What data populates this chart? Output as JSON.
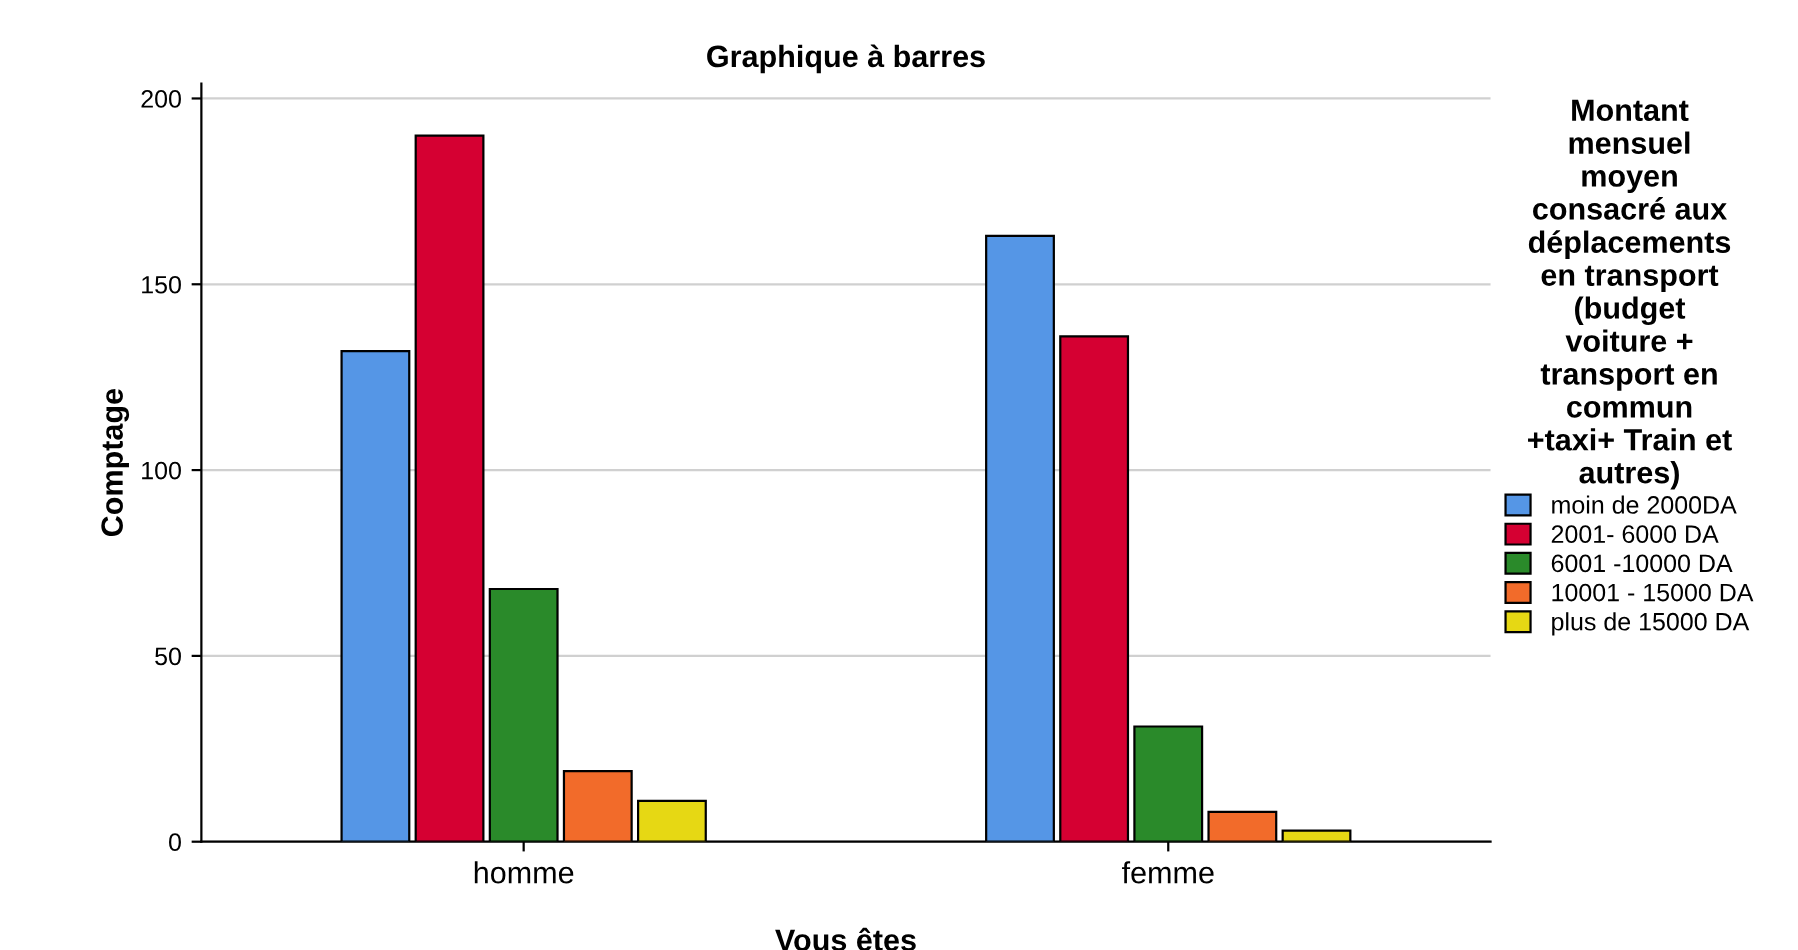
{
  "chart_data": {
    "type": "bar",
    "title": "Graphique à barres",
    "xlabel": "Vous êtes",
    "ylabel": "Comptage",
    "legend_title": "Montant\nmensuel\nmoyen\nconsacré aux\ndéplacements\nen transport\n(budget\nvoiture +\ntransport en\ncommun\n+taxi+ Train et\nautres)",
    "categories": [
      "homme",
      "femme"
    ],
    "series": [
      {
        "name": "moin de 2000DA",
        "color": "#5596e6",
        "values": [
          132,
          163
        ]
      },
      {
        "name": "2001- 6000 DA",
        "color": "#d50032",
        "values": [
          190,
          136
        ]
      },
      {
        "name": "6001 -10000 DA",
        "color": "#2a8a2a",
        "values": [
          68,
          31
        ]
      },
      {
        "name": "10001 - 15000 DA",
        "color": "#f26b2a",
        "values": [
          19,
          8
        ]
      },
      {
        "name": "plus de 15000 DA",
        "color": "#e6d814",
        "values": [
          11,
          3
        ]
      }
    ],
    "ylim": [
      0,
      204
    ],
    "yticks": [
      0,
      50,
      100,
      150,
      200
    ],
    "grid": "y",
    "legend": "right"
  }
}
